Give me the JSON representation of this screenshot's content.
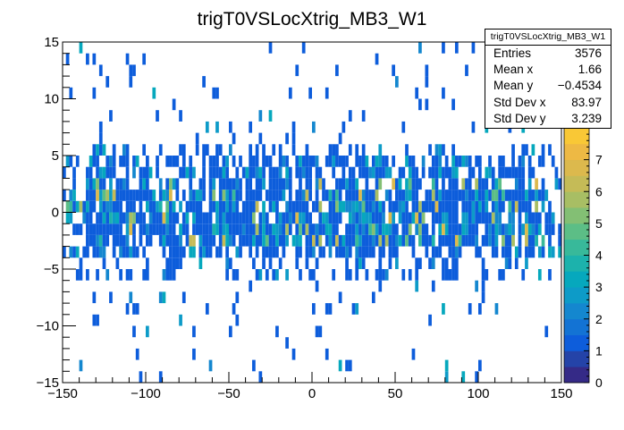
{
  "chart_data": {
    "type": "heatmap",
    "title": "trigT0VSLocXtrig_MB3_W1",
    "xlabel": "",
    "ylabel": "",
    "xlim": [
      -150,
      150
    ],
    "ylim": [
      -15,
      15
    ],
    "x_ticks": [
      -150,
      -100,
      -50,
      0,
      50,
      100,
      150
    ],
    "x_tick_labels": [
      "−150",
      "−100",
      "−50",
      "0",
      "50",
      "100",
      "150"
    ],
    "y_ticks": [
      -15,
      -10,
      -5,
      0,
      5,
      10,
      15
    ],
    "y_tick_labels": [
      "−15",
      "−10",
      "−5",
      "0",
      "5",
      "10",
      "15"
    ],
    "color_scale": {
      "min": 0,
      "max": 8,
      "ticks": [
        0,
        1,
        2,
        3,
        4,
        5,
        6,
        7
      ],
      "tick_labels": [
        "0",
        "1",
        "2",
        "3",
        "4",
        "5",
        "6",
        "7"
      ],
      "palette": [
        "#352a87",
        "#2443a8",
        "#0d5ddb",
        "#1373d4",
        "#1487cf",
        "#0d9bc8",
        "#06a8bd",
        "#1cb2ac",
        "#38b99a",
        "#5cbe86",
        "#83bf74",
        "#a8be64",
        "#c5bb57",
        "#dcb94d",
        "#eeb944",
        "#f9c836"
      ]
    },
    "bins": {
      "x_range": [
        -150,
        150
      ],
      "y_range": [
        -15,
        15
      ],
      "nx": 150,
      "ny": 30,
      "note": "bin counts approximated from the image: dense band |y| < 6, sparse tails out to |y| = 15"
    },
    "stats": {
      "name": "trigT0VSLocXtrig_MB3_W1",
      "rows": [
        {
          "label": "Entries",
          "value": "3576"
        },
        {
          "label": "Mean x",
          "value": "1.66"
        },
        {
          "label": "Mean y",
          "value": "−0.4534"
        },
        {
          "label": "Std Dev x",
          "value": "83.97"
        },
        {
          "label": "Std Dev y",
          "value": "3.239"
        }
      ]
    }
  }
}
